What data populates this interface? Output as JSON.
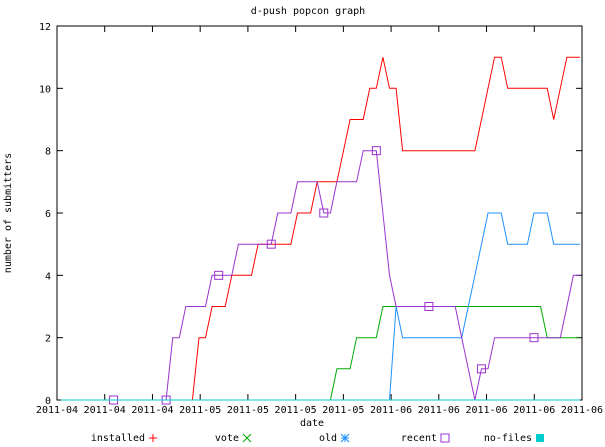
{
  "chart_data": {
    "type": "line",
    "title": "d-push popcon graph",
    "xlabel": "date",
    "ylabel": "number of submitters",
    "x_tick_labels": [
      "2011-04",
      "2011-04",
      "2011-04",
      "2011-05",
      "2011-05",
      "2011-05",
      "2011-05",
      "2011-06",
      "2011-06",
      "2011-06",
      "2011-06",
      "2011-06"
    ],
    "y_ticks": [
      0,
      2,
      4,
      6,
      8,
      10,
      12
    ],
    "ylim": [
      0,
      12
    ],
    "grid": false,
    "legend_position": "bottom",
    "series": [
      {
        "name": "installed",
        "color": "#ff0000",
        "marker": "plus",
        "values": [
          0,
          0,
          0,
          0,
          0,
          0,
          0,
          0,
          0,
          0,
          0,
          0,
          0,
          0,
          0,
          0,
          0,
          0,
          0,
          0,
          0,
          2,
          2,
          3,
          3,
          3,
          4,
          4,
          4,
          4,
          5,
          5,
          5,
          5,
          5,
          5,
          6,
          6,
          6,
          7,
          7,
          7,
          7,
          8,
          9,
          9,
          9,
          10,
          10,
          11,
          10,
          10,
          8,
          8,
          8,
          8,
          8,
          8,
          8,
          8,
          8,
          8,
          8,
          8,
          9,
          10,
          11,
          11,
          10,
          10,
          10,
          10,
          10,
          10,
          10,
          9,
          10,
          11,
          11,
          11
        ],
        "marker_days": [
          49,
          50,
          62,
          71,
          76,
          94,
          98,
          104,
          111
        ]
      },
      {
        "name": "vote",
        "color": "#00aa00",
        "marker": "cross",
        "values": [
          0,
          0,
          0,
          0,
          0,
          0,
          0,
          0,
          0,
          0,
          0,
          0,
          0,
          0,
          0,
          0,
          0,
          0,
          0,
          0,
          0,
          0,
          0,
          0,
          0,
          0,
          0,
          0,
          0,
          0,
          0,
          0,
          0,
          0,
          0,
          0,
          0,
          0,
          0,
          0,
          0,
          0,
          1,
          1,
          1,
          2,
          2,
          2,
          2,
          3,
          3,
          3,
          3,
          3,
          3,
          3,
          3,
          3,
          3,
          3,
          3,
          3,
          3,
          3,
          3,
          3,
          3,
          3,
          3,
          3,
          3,
          3,
          3,
          3,
          2,
          2,
          2,
          2,
          2,
          2
        ],
        "marker_days": [
          43,
          48,
          70,
          76,
          77
        ]
      },
      {
        "name": "old",
        "color": "#1e90ff",
        "marker": "star",
        "values": [
          0,
          0,
          0,
          0,
          0,
          0,
          0,
          0,
          0,
          0,
          0,
          0,
          0,
          0,
          0,
          0,
          0,
          0,
          0,
          0,
          0,
          0,
          0,
          0,
          0,
          0,
          0,
          0,
          0,
          0,
          0,
          0,
          0,
          0,
          0,
          0,
          0,
          0,
          0,
          0,
          0,
          0,
          0,
          0,
          0,
          0,
          0,
          0,
          0,
          0,
          0,
          3,
          2,
          2,
          2,
          2,
          2,
          2,
          2,
          2,
          2,
          2,
          3,
          4,
          5,
          6,
          6,
          6,
          5,
          5,
          5,
          5,
          6,
          6,
          6,
          5,
          5,
          5,
          5,
          5
        ],
        "marker_days": [
          52,
          57,
          62,
          67,
          72,
          77
        ]
      },
      {
        "name": "recent",
        "color": "#9933cc",
        "marker": "square",
        "values": [
          0,
          0,
          0,
          0,
          0,
          0,
          0,
          0,
          0,
          0,
          0,
          0,
          0,
          0,
          0,
          0,
          0,
          2,
          2,
          3,
          3,
          3,
          3,
          4,
          4,
          4,
          4,
          5,
          5,
          5,
          5,
          5,
          5,
          6,
          6,
          6,
          7,
          7,
          7,
          7,
          6,
          6,
          7,
          7,
          7,
          7,
          8,
          8,
          8,
          6,
          4,
          3,
          3,
          3,
          3,
          3,
          3,
          3,
          3,
          3,
          3,
          2,
          1,
          0,
          1,
          1,
          2,
          2,
          2,
          2,
          2,
          2,
          2,
          2,
          2,
          2,
          2,
          3,
          4,
          4
        ],
        "marker_days": [
          1,
          2,
          3,
          4,
          5,
          6,
          7,
          8,
          9
        ]
      },
      {
        "name": "no-files",
        "color": "#00cccc",
        "marker": "filled-square",
        "values": [
          0,
          0,
          0,
          0,
          0,
          0,
          0,
          0,
          0,
          0,
          0,
          0,
          0,
          0,
          0,
          0,
          0,
          0,
          0,
          0,
          0,
          0,
          0,
          0,
          0,
          0,
          0,
          0,
          0,
          0,
          0,
          0,
          0,
          0,
          0,
          0,
          0,
          0,
          0,
          0,
          0,
          0,
          0,
          0,
          0,
          0,
          0,
          0,
          0,
          0,
          0,
          0,
          0,
          0,
          0,
          0,
          0,
          0,
          0,
          0,
          0,
          0,
          0,
          0,
          0,
          0,
          0,
          0,
          0,
          0,
          0,
          0,
          0,
          0,
          0,
          0,
          0,
          0,
          0,
          0
        ],
        "marker_days": []
      }
    ]
  }
}
